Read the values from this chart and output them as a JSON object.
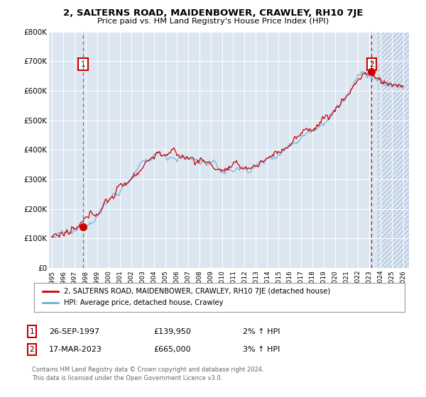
{
  "title": "2, SALTERNS ROAD, MAIDENBOWER, CRAWLEY, RH10 7JE",
  "subtitle": "Price paid vs. HM Land Registry's House Price Index (HPI)",
  "background_color": "#ffffff",
  "plot_bg_color": "#dce6f1",
  "grid_color": "#ffffff",
  "sale1_date": 1997.74,
  "sale1_price": 139950,
  "sale1_label": "1",
  "sale2_date": 2023.21,
  "sale2_price": 665000,
  "sale2_label": "2",
  "ylim": [
    0,
    800000
  ],
  "xlim_start": 1994.75,
  "xlim_end": 2026.5,
  "x_ticks": [
    1995,
    1996,
    1997,
    1998,
    1999,
    2000,
    2001,
    2002,
    2003,
    2004,
    2005,
    2006,
    2007,
    2008,
    2009,
    2010,
    2011,
    2012,
    2013,
    2014,
    2015,
    2016,
    2017,
    2018,
    2019,
    2020,
    2021,
    2022,
    2023,
    2024,
    2025,
    2026
  ],
  "y_ticks": [
    0,
    100000,
    200000,
    300000,
    400000,
    500000,
    600000,
    700000,
    800000
  ],
  "y_tick_labels": [
    "£0",
    "£100K",
    "£200K",
    "£300K",
    "£400K",
    "£500K",
    "£600K",
    "£700K",
    "£800K"
  ],
  "legend_line1": "2, SALTERNS ROAD, MAIDENBOWER, CRAWLEY, RH10 7JE (detached house)",
  "legend_line2": "HPI: Average price, detached house, Crawley",
  "footer1": "Contains HM Land Registry data © Crown copyright and database right 2024.",
  "footer2": "This data is licensed under the Open Government Licence v3.0.",
  "table_row1": [
    "1",
    "26-SEP-1997",
    "£139,950",
    "2% ↑ HPI"
  ],
  "table_row2": [
    "2",
    "17-MAR-2023",
    "£665,000",
    "3% ↑ HPI"
  ],
  "hpi_color": "#6baed6",
  "price_color": "#cc0000",
  "sale1_vline_color": "#888888",
  "sale2_vline_color": "#cc0000",
  "hatch_fill_color": "#dce6f1",
  "hatch_edge_color": "#aec4db"
}
